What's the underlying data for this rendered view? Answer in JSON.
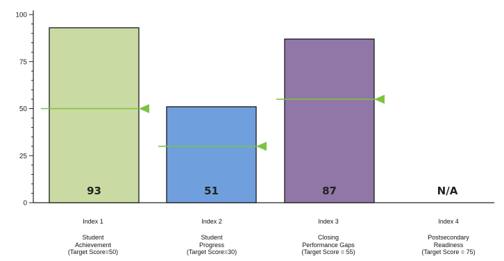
{
  "chart_data": {
    "type": "bar",
    "title": "",
    "xlabel": "",
    "ylabel": "",
    "ylim": [
      0,
      100
    ],
    "yticks": [
      0,
      25,
      50,
      75,
      100
    ],
    "ytick_labels": [
      "0",
      "25",
      "50",
      "75",
      "100"
    ],
    "grid": false,
    "legend": "none",
    "categories": [
      {
        "lines": [
          "Index 1",
          "",
          "Student",
          "Achievement",
          "(Target Score=50)"
        ]
      },
      {
        "lines": [
          "Index 2",
          "",
          "Student",
          "Progress",
          "(Target Score=30)"
        ]
      },
      {
        "lines": [
          "Index 3",
          "",
          "Closing",
          "Performance Gaps",
          "(Target Score = 55)"
        ]
      },
      {
        "lines": [
          "Index 4",
          "",
          "Postsecondary",
          "Readiness",
          "(Target Score = 75)"
        ]
      }
    ],
    "values": [
      93,
      51,
      87,
      null
    ],
    "value_labels": [
      "93",
      "51",
      "87",
      "N/A"
    ],
    "targets": [
      50,
      30,
      55,
      75
    ],
    "target_shown": [
      true,
      true,
      true,
      false
    ],
    "bar_colors": [
      "#c9dba2",
      "#6f9fdc",
      "#9077a7",
      "#ffffff"
    ],
    "target_color": "#7dc242",
    "axis_color": "#222222"
  }
}
